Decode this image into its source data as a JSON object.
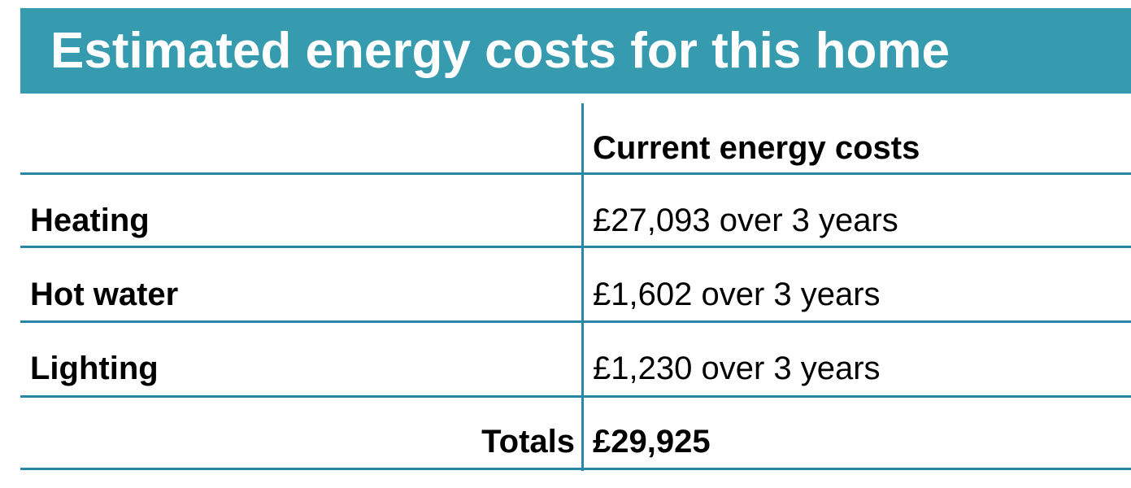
{
  "header": {
    "title": "Estimated energy costs for this home"
  },
  "table": {
    "column_header": "Current energy costs",
    "rows": [
      [
        "Heating",
        "£27,093 over 3 years"
      ],
      [
        "Hot water",
        "£1,602 over 3 years"
      ],
      [
        "Lighting",
        "£1,230 over 3 years"
      ]
    ],
    "totals": {
      "label": "Totals",
      "value": "£29,925"
    }
  }
}
